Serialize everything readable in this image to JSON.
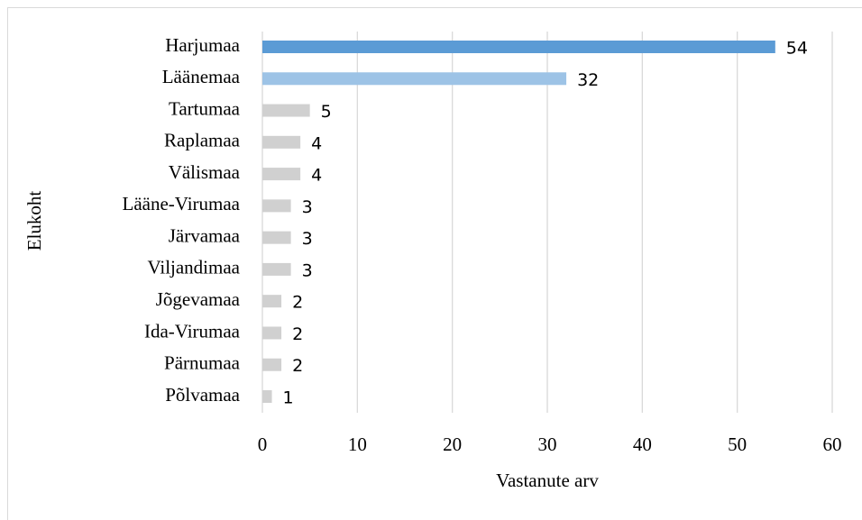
{
  "chart_data": {
    "type": "barh",
    "categories": [
      "Harjumaa",
      "Läänemaa",
      "Tartumaa",
      "Raplamaa",
      "Välismaa",
      "Lääne-Virumaa",
      "Järvamaa",
      "Viljandimaa",
      "Jõgevamaa",
      "Ida-Virumaa",
      "Pärnumaa",
      "Põlvamaa"
    ],
    "values": [
      54,
      32,
      5,
      4,
      4,
      3,
      3,
      3,
      2,
      2,
      2,
      1
    ],
    "colors": [
      "#5b9bd5",
      "#9dc3e6",
      "#d0d0d0",
      "#d0d0d0",
      "#d0d0d0",
      "#d0d0d0",
      "#d0d0d0",
      "#d0d0d0",
      "#d0d0d0",
      "#d0d0d0",
      "#d0d0d0",
      "#d0d0d0"
    ],
    "xlim": [
      0,
      60
    ],
    "xticks": [
      0,
      10,
      20,
      30,
      40,
      50,
      60
    ],
    "xlabel": "Vastanute arv",
    "ylabel": "Elukoht",
    "grid": true
  }
}
